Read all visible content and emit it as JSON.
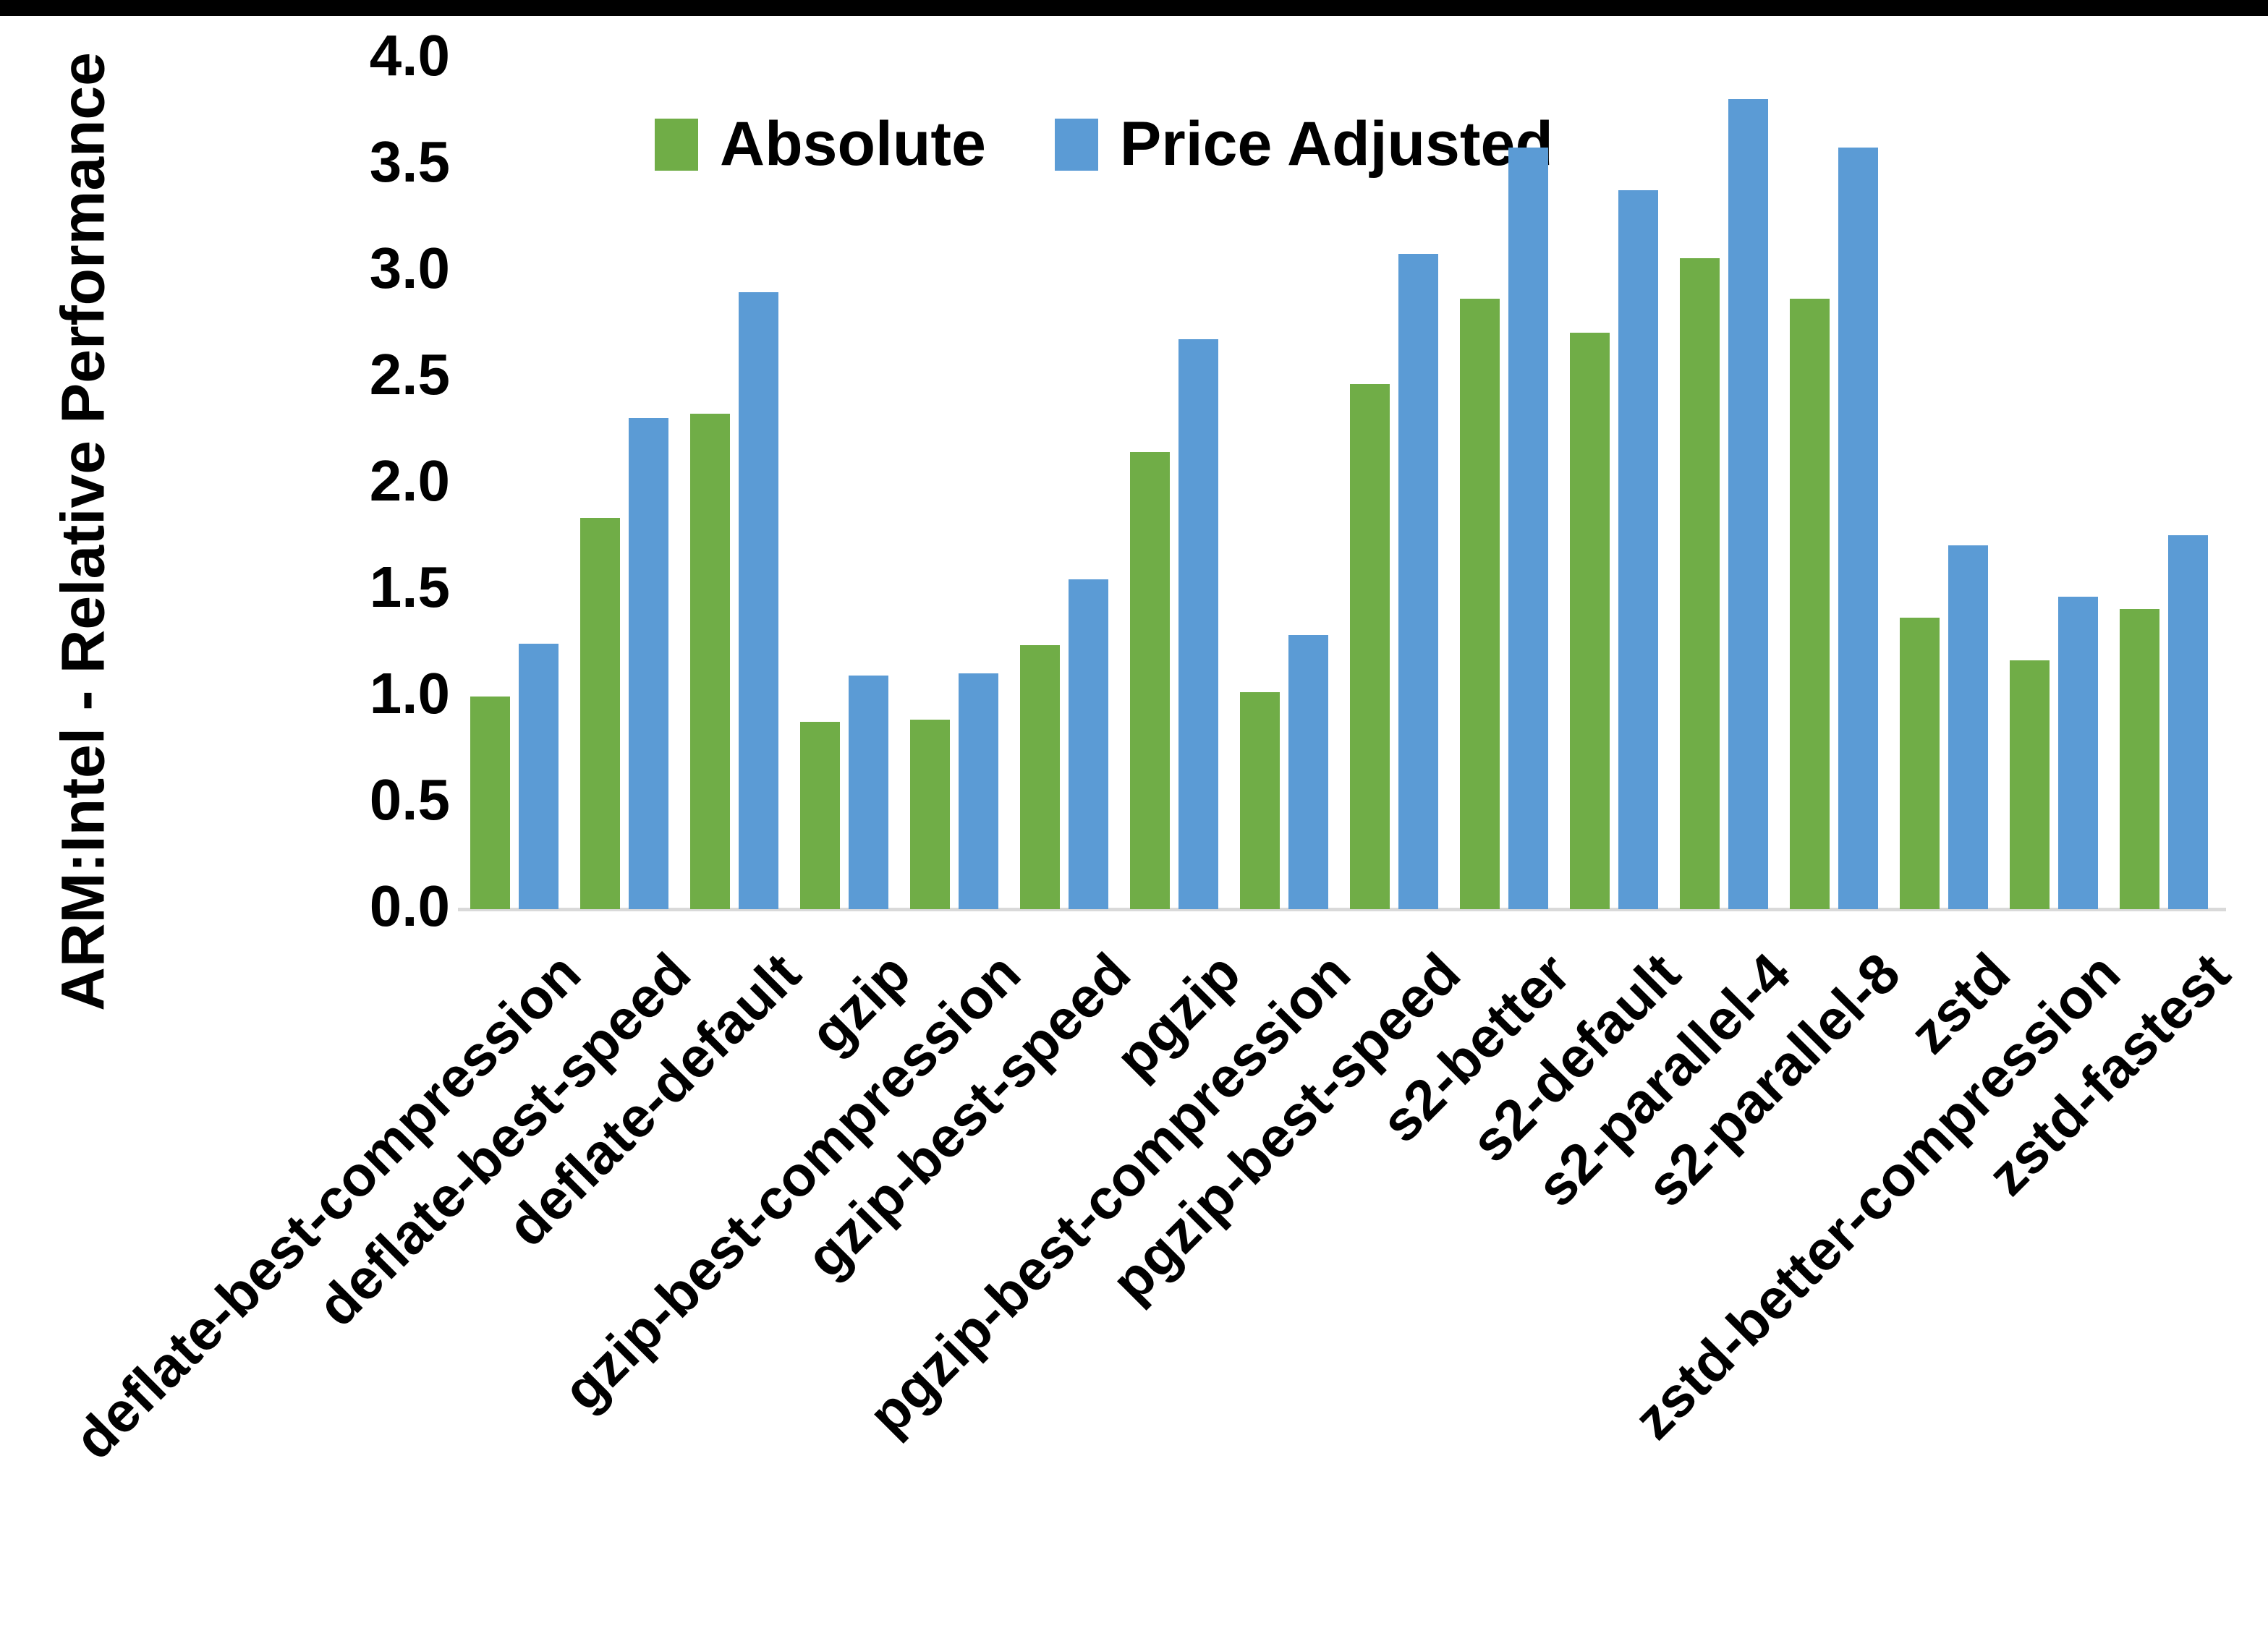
{
  "chart_data": {
    "type": "bar",
    "title": "",
    "xlabel": "",
    "ylabel": "ARM:Intel - Relative Performance",
    "ylim": [
      0.0,
      4.0
    ],
    "ytick_step": 0.5,
    "ytick_labels": [
      "0.0",
      "0.5",
      "1.0",
      "1.5",
      "2.0",
      "2.5",
      "3.0",
      "3.5",
      "4.0"
    ],
    "grid": false,
    "legend_position": "top-inside",
    "categories": [
      "deflate-best-compression",
      "deflate-best-speed",
      "deflate-default",
      "gzip",
      "gzip-best-compression",
      "gzip-best-speed",
      "pgzip",
      "pgzip-best-compression",
      "pgzip-best-speed",
      "s2-better",
      "s2-default",
      "s2-parallel-4",
      "s2-parallel-8",
      "zstd",
      "zstd-better-compression",
      "zstd-fastest"
    ],
    "series": [
      {
        "name": "Absolute",
        "color": "#70AD47",
        "values": [
          1.0,
          1.84,
          2.33,
          0.88,
          0.89,
          1.24,
          2.15,
          1.02,
          2.47,
          2.87,
          2.71,
          3.06,
          2.87,
          1.37,
          1.17,
          1.41
        ]
      },
      {
        "name": "Price Adjusted",
        "color": "#5B9BD5",
        "values": [
          1.25,
          2.31,
          2.9,
          1.1,
          1.11,
          1.55,
          2.68,
          1.29,
          3.08,
          3.58,
          3.38,
          3.81,
          3.58,
          1.71,
          1.47,
          1.76
        ]
      }
    ],
    "colors": {
      "axis_line": "#D9D9D9",
      "text": "#000000",
      "bottom_border": "#000000",
      "background": "#FFFFFF"
    }
  }
}
